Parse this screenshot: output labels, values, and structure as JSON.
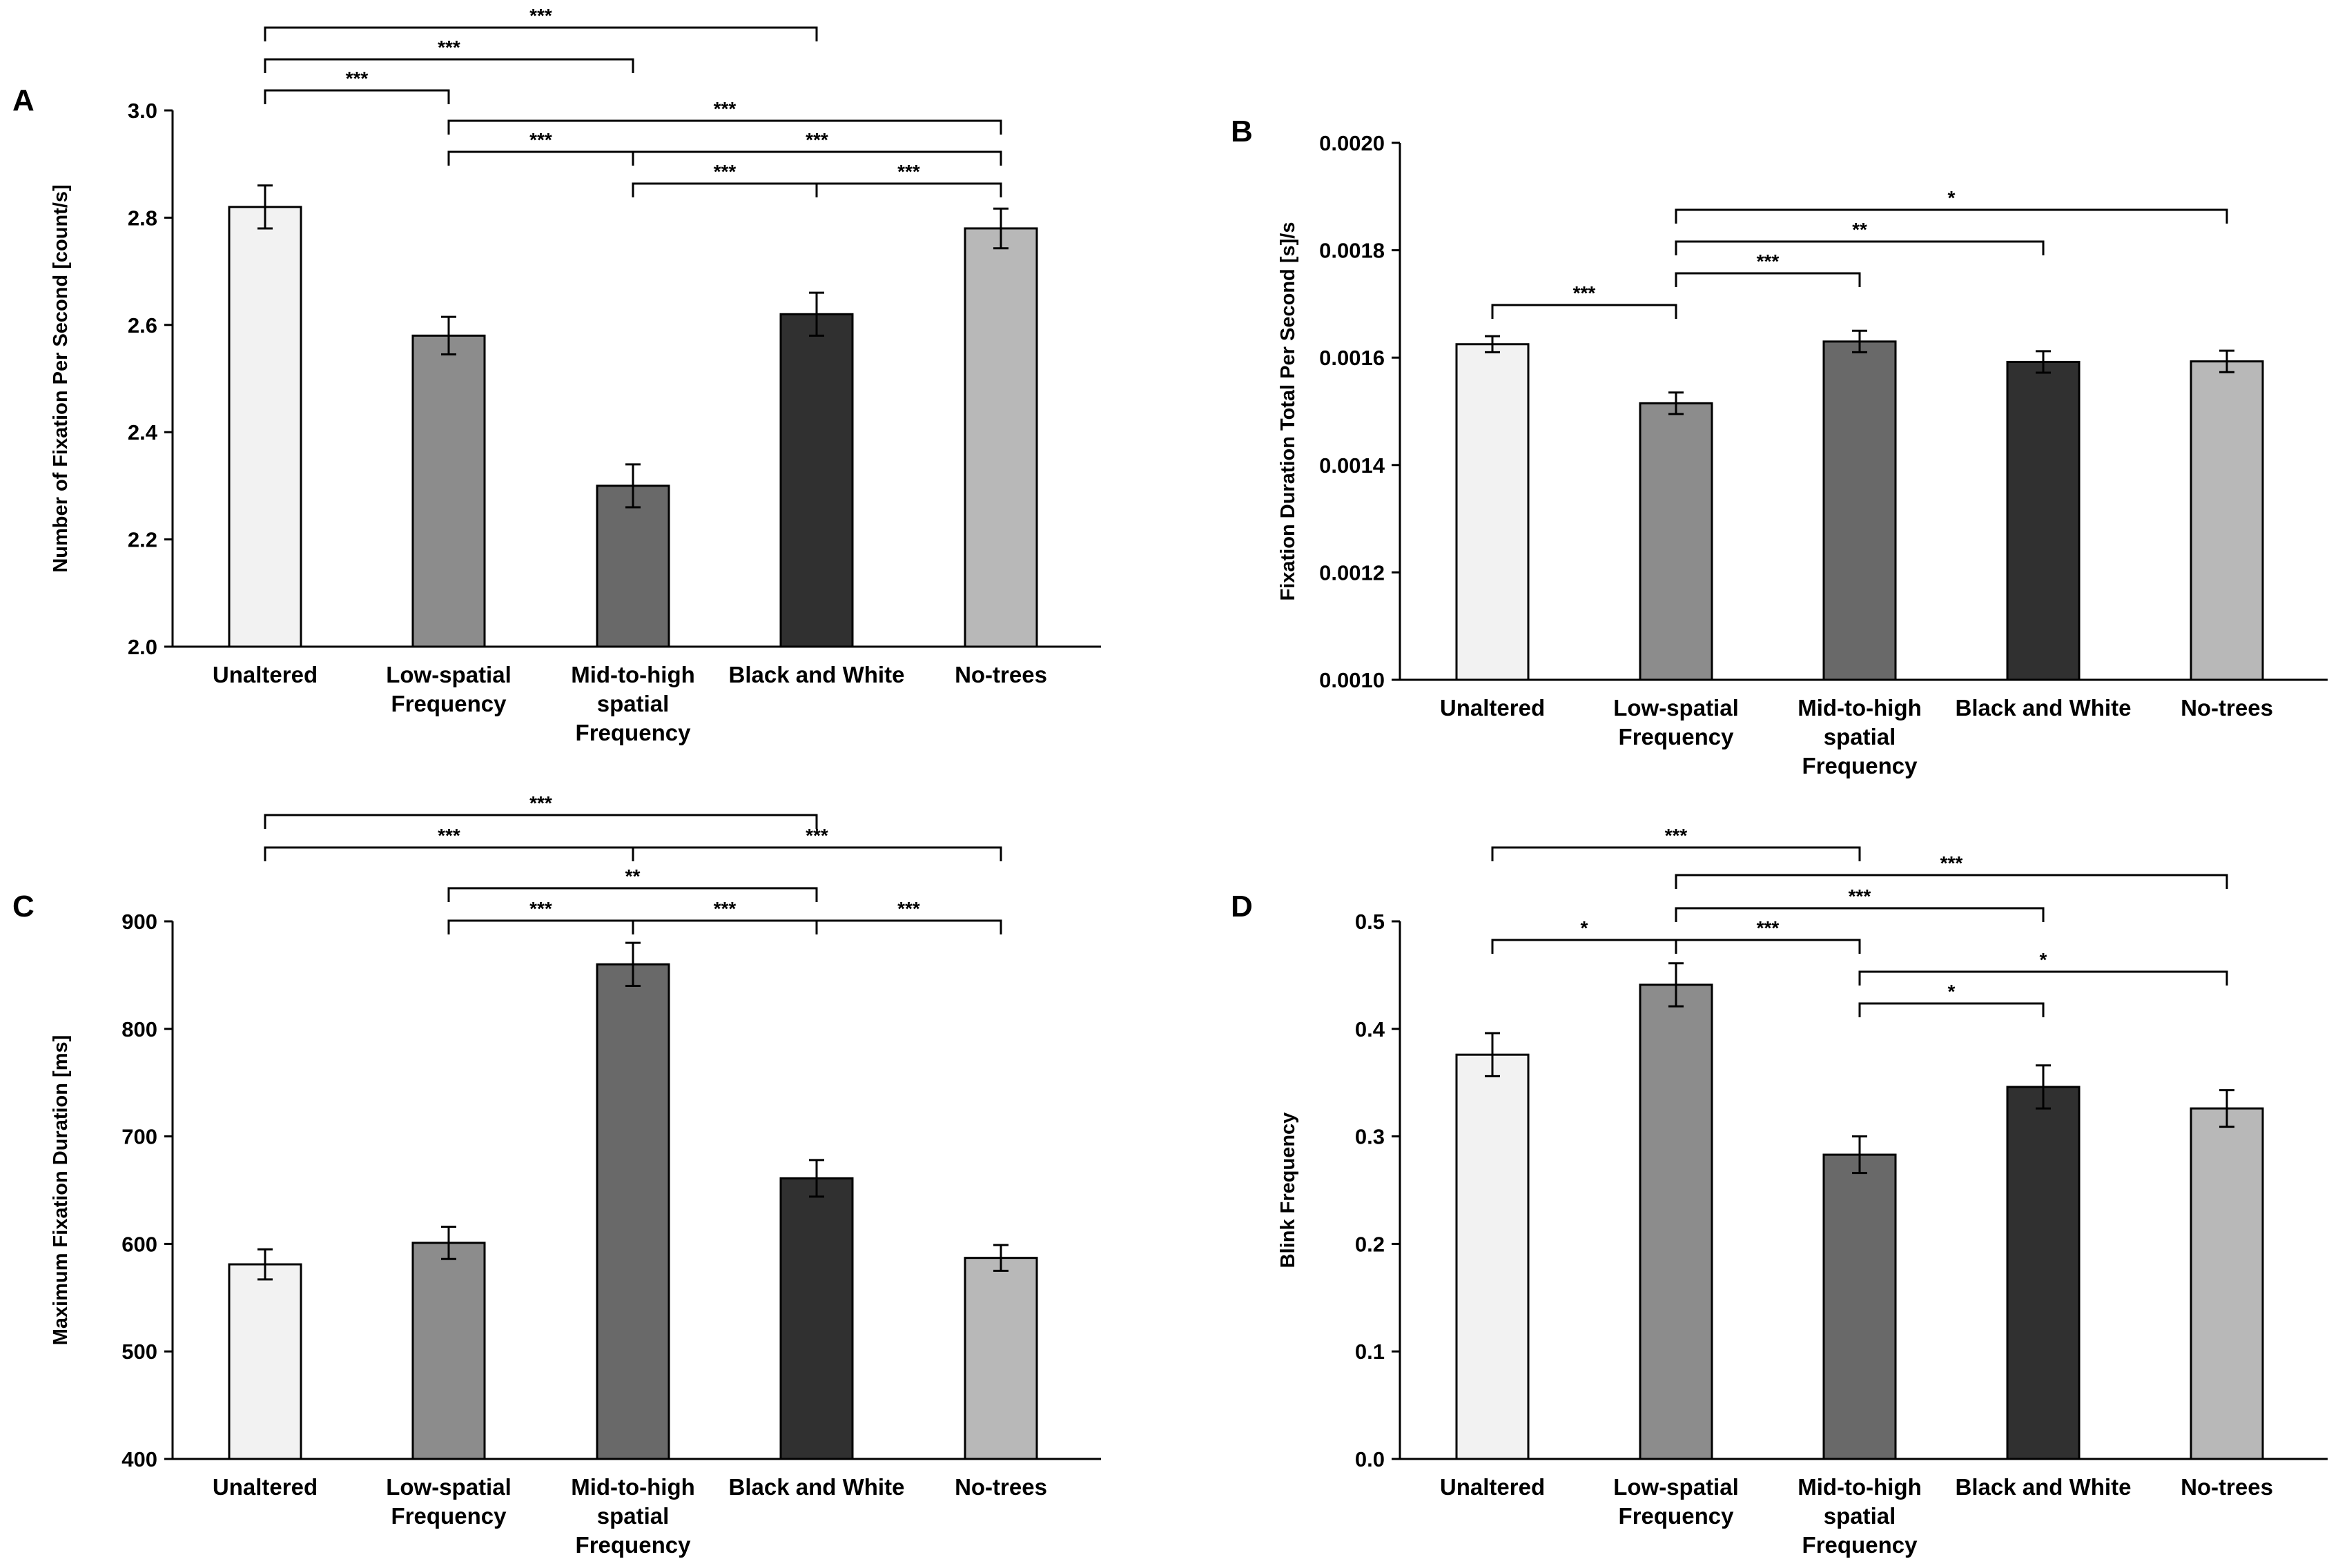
{
  "chart_data": [
    {
      "panel": "A",
      "type": "bar",
      "ylabel": "Number of Fixation Per Second [count/s]",
      "ylim": [
        2.0,
        3.0
      ],
      "yticks": [
        "2.0",
        "2.2",
        "2.4",
        "2.6",
        "2.8",
        "3.0"
      ],
      "categories": [
        "Unaltered",
        "Low-spatial Frequency",
        "Mid-to-high spatial Frequency",
        "Black and White",
        "No-trees"
      ],
      "category_lines": [
        [
          "Unaltered"
        ],
        [
          "Low-spatial",
          "Frequency"
        ],
        [
          "Mid-to-high",
          "spatial",
          "Frequency"
        ],
        [
          "Black and White"
        ],
        [
          "No-trees"
        ]
      ],
      "values": [
        2.82,
        2.58,
        2.3,
        2.62,
        2.78
      ],
      "errors": [
        0.04,
        0.035,
        0.04,
        0.04,
        0.037
      ],
      "colors": [
        "#f2f2f2",
        "#8c8c8c",
        "#696969",
        "#303030",
        "#b8b8b8"
      ],
      "significance": [
        {
          "from": 0,
          "to": 3,
          "label": "***"
        },
        {
          "from": 0,
          "to": 2,
          "label": "***"
        },
        {
          "from": 1,
          "to": 4,
          "label": "***"
        },
        {
          "from": 0,
          "to": 1,
          "label": "***"
        },
        {
          "from": 1,
          "to": 2,
          "label": "***"
        },
        {
          "from": 2,
          "to": 4,
          "label": "***"
        },
        {
          "from": 2,
          "to": 3,
          "label": "***"
        },
        {
          "from": 3,
          "to": 4,
          "label": "***"
        }
      ]
    },
    {
      "panel": "B",
      "type": "bar",
      "ylabel": "Fixation Duration Total Per Second [s]/s",
      "ylim": [
        0.001,
        0.002
      ],
      "yticks": [
        "0.0010",
        "0.0012",
        "0.0014",
        "0.0016",
        "0.0018",
        "0.0020"
      ],
      "categories": [
        "Unaltered",
        "Low-spatial Frequency",
        "Mid-to-high spatial Frequency",
        "Black and White",
        "No-trees"
      ],
      "category_lines": [
        [
          "Unaltered"
        ],
        [
          "Low-spatial",
          "Frequency"
        ],
        [
          "Mid-to-high",
          "spatial",
          "Frequency"
        ],
        [
          "Black and White"
        ],
        [
          "No-trees"
        ]
      ],
      "values": [
        0.001625,
        0.001515,
        0.00163,
        0.001592,
        0.001593
      ],
      "errors": [
        1.5e-05,
        2e-05,
        2e-05,
        2e-05,
        2e-05
      ],
      "colors": [
        "#f2f2f2",
        "#8c8c8c",
        "#696969",
        "#303030",
        "#b8b8b8"
      ],
      "significance": [
        {
          "from": 1,
          "to": 4,
          "label": "*"
        },
        {
          "from": 1,
          "to": 3,
          "label": "**"
        },
        {
          "from": 1,
          "to": 2,
          "label": "***"
        },
        {
          "from": 0,
          "to": 1,
          "label": "***"
        }
      ]
    },
    {
      "panel": "C",
      "type": "bar",
      "ylabel": "Maximum Fixation Duration [ms]",
      "ylim": [
        400,
        900
      ],
      "yticks": [
        "400",
        "500",
        "600",
        "700",
        "800",
        "900"
      ],
      "categories": [
        "Unaltered",
        "Low-spatial Frequency",
        "Mid-to-high spatial Frequency",
        "Black and White",
        "No-trees"
      ],
      "category_lines": [
        [
          "Unaltered"
        ],
        [
          "Low-spatial",
          "Frequency"
        ],
        [
          "Mid-to-high",
          "spatial",
          "Frequency"
        ],
        [
          "Black and White"
        ],
        [
          "No-trees"
        ]
      ],
      "values": [
        581,
        601,
        860,
        661,
        587
      ],
      "errors": [
        14,
        15,
        20,
        17,
        12
      ],
      "colors": [
        "#f2f2f2",
        "#8c8c8c",
        "#696969",
        "#303030",
        "#b8b8b8"
      ],
      "significance": [
        {
          "from": 0,
          "to": 3,
          "label": "***"
        },
        {
          "from": 0,
          "to": 2,
          "label": "***"
        },
        {
          "from": 2,
          "to": 4,
          "label": "***"
        },
        {
          "from": 1,
          "to": 3,
          "label": "**"
        },
        {
          "from": 1,
          "to": 2,
          "label": "***"
        },
        {
          "from": 2,
          "to": 3,
          "label": "***"
        },
        {
          "from": 3,
          "to": 4,
          "label": "***"
        }
      ]
    },
    {
      "panel": "D",
      "type": "bar",
      "ylabel": "Blink Frequency",
      "ylim": [
        0.0,
        0.5
      ],
      "yticks": [
        "0.0",
        "0.1",
        "0.2",
        "0.3",
        "0.4",
        "0.5"
      ],
      "categories": [
        "Unaltered",
        "Low-spatial Frequency",
        "Mid-to-high spatial Frequency",
        "Black and White",
        "No-trees"
      ],
      "category_lines": [
        [
          "Unaltered"
        ],
        [
          "Low-spatial",
          "Frequency"
        ],
        [
          "Mid-to-high",
          "spatial",
          "Frequency"
        ],
        [
          "Black and White"
        ],
        [
          "No-trees"
        ]
      ],
      "values": [
        0.376,
        0.441,
        0.283,
        0.346,
        0.326
      ],
      "errors": [
        0.02,
        0.02,
        0.017,
        0.02,
        0.017
      ],
      "colors": [
        "#f2f2f2",
        "#8c8c8c",
        "#696969",
        "#303030",
        "#b8b8b8"
      ],
      "significance": [
        {
          "from": 0,
          "to": 2,
          "label": "***"
        },
        {
          "from": 1,
          "to": 4,
          "label": "***"
        },
        {
          "from": 1,
          "to": 3,
          "label": "***"
        },
        {
          "from": 0,
          "to": 1,
          "label": "*"
        },
        {
          "from": 1,
          "to": 2,
          "label": "***"
        },
        {
          "from": 2,
          "to": 4,
          "label": "*"
        },
        {
          "from": 2,
          "to": 3,
          "label": "*"
        }
      ]
    }
  ]
}
